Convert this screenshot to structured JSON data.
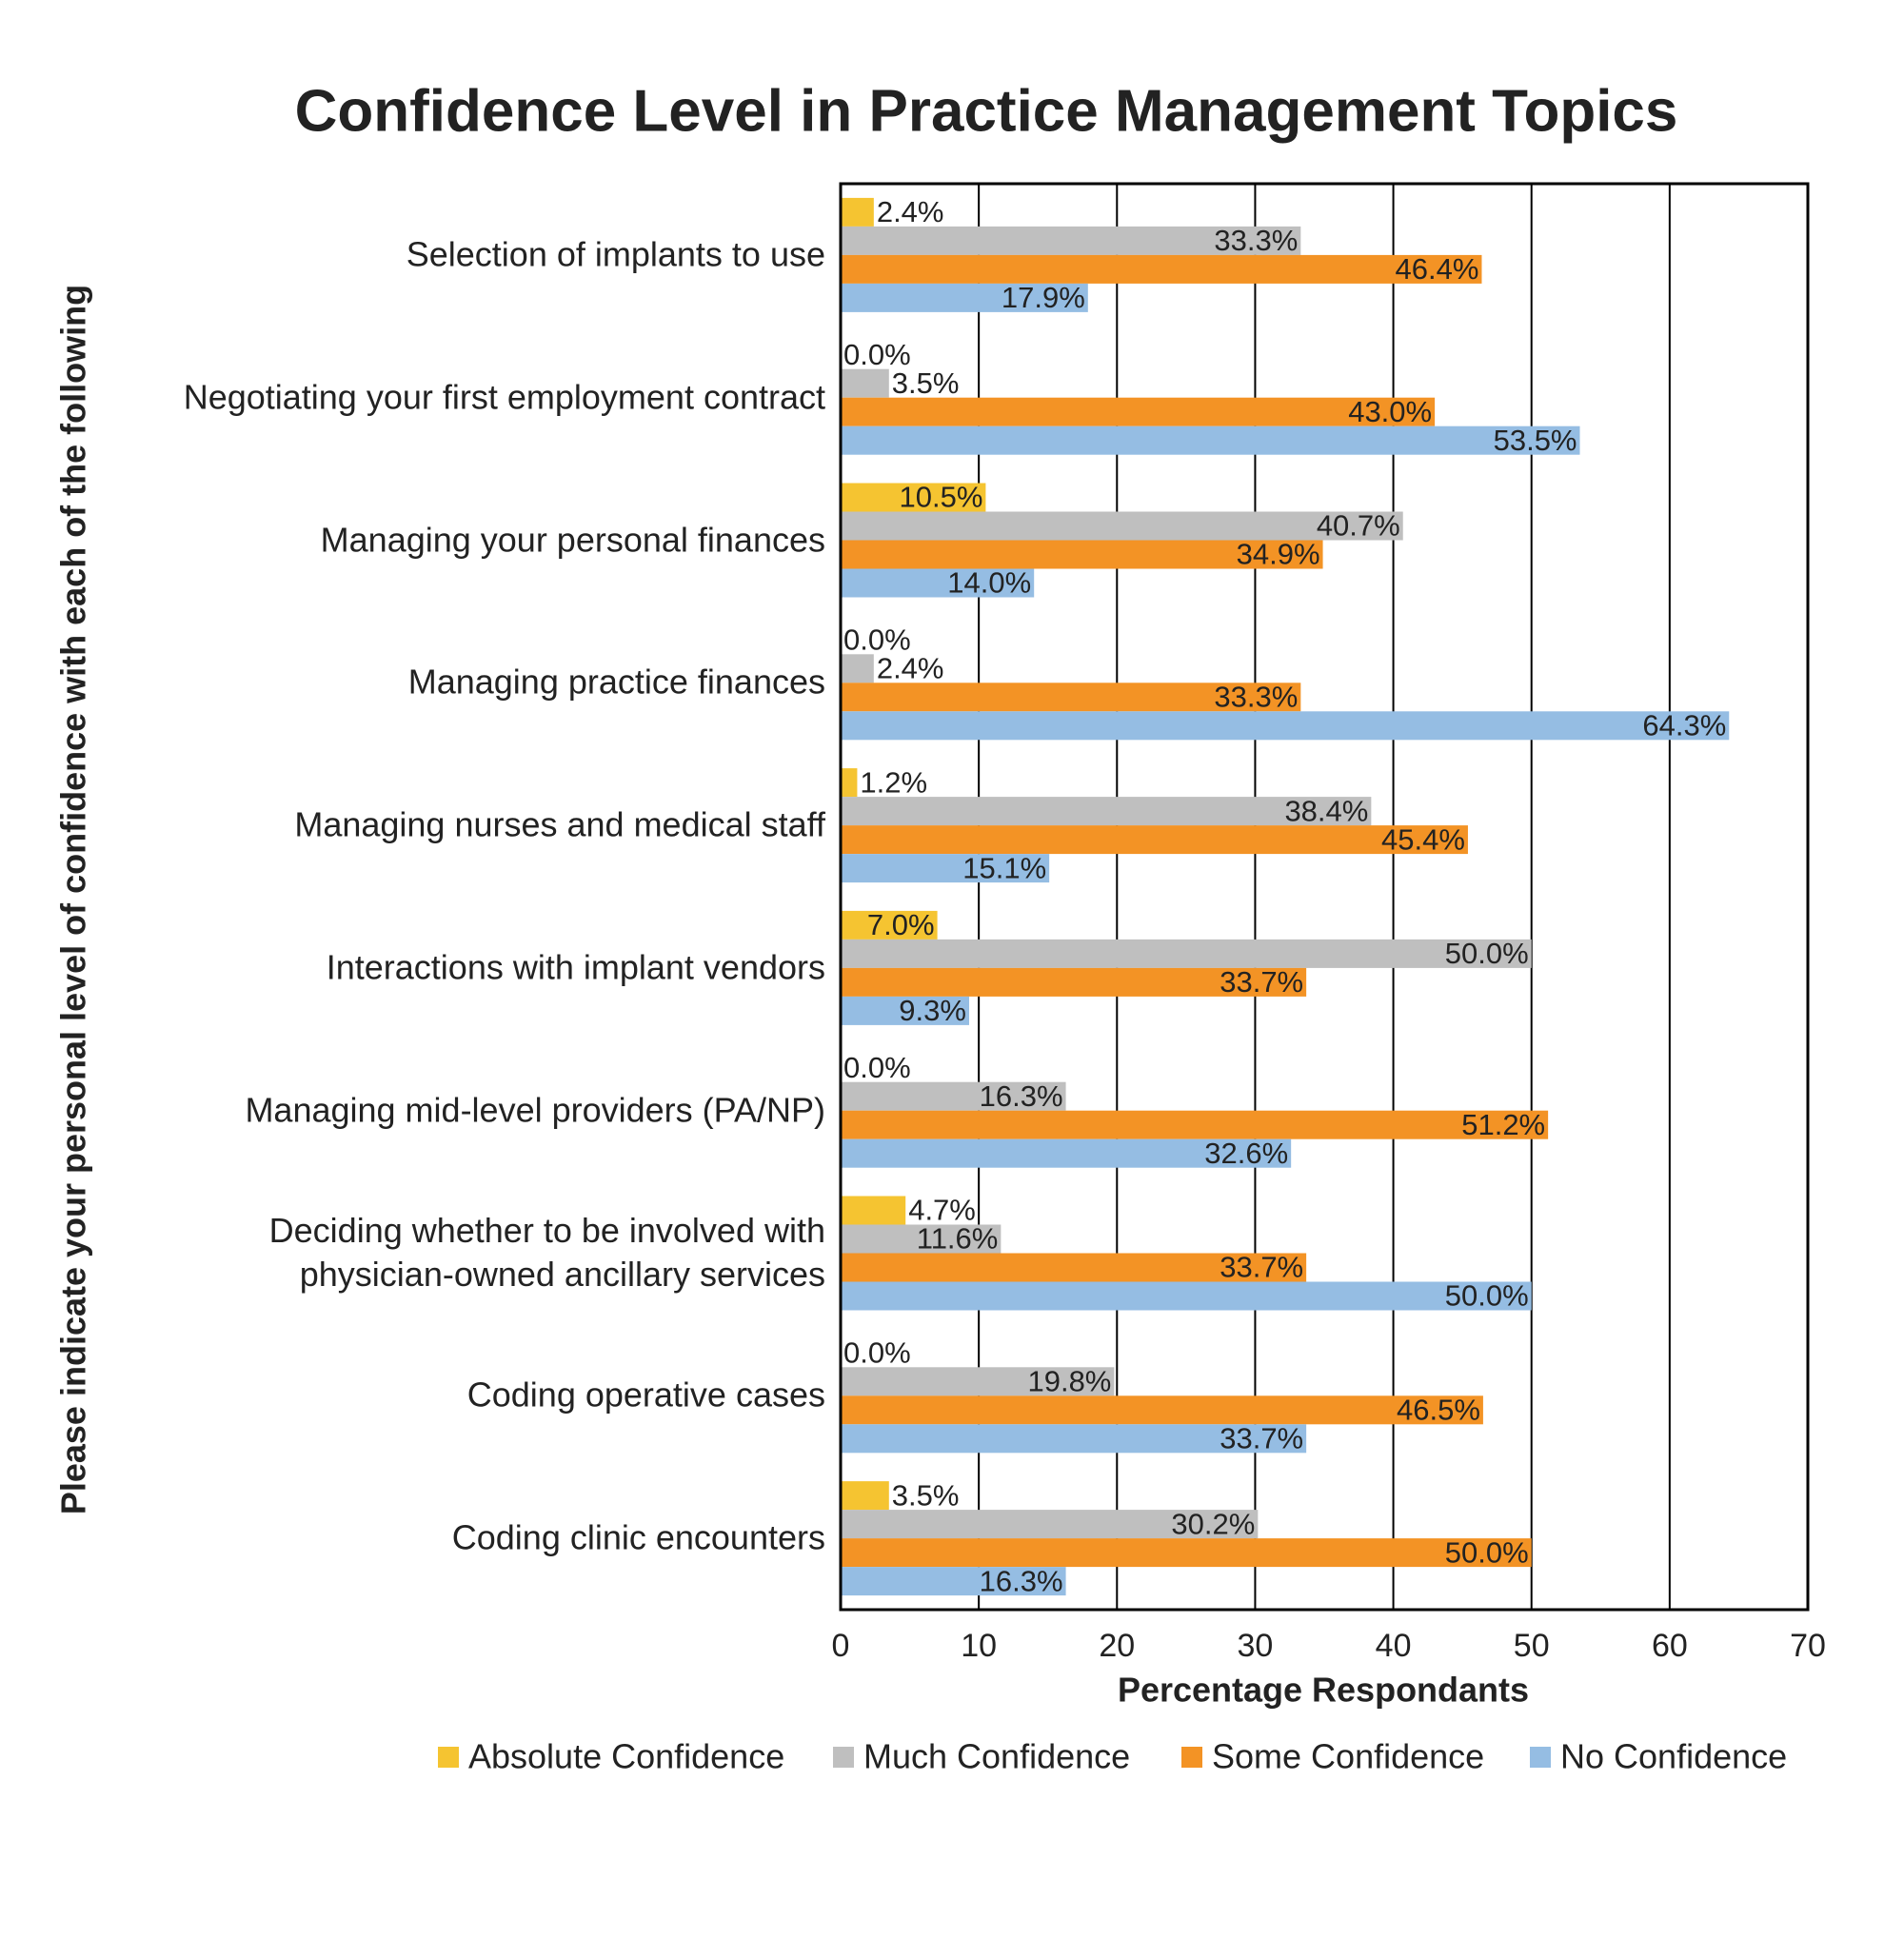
{
  "chart_data": {
    "type": "hbar",
    "title": "Confidence Level in Practice Management Topics",
    "xlabel": "Percentage Respondants",
    "ylabel": "Please indicate your personal level of confidence with each of the following",
    "categories": [
      "Selection of implants to use",
      "Negotiating your first employment contract",
      "Managing your personal finances",
      "Managing practice finances",
      "Managing nurses and medical staff",
      "Interactions with implant vendors",
      "Managing mid-level providers (PA/NP)",
      "Deciding whether to be involved with\nphysician-owned ancillary services",
      "Coding operative cases",
      "Coding clinic encounters"
    ],
    "series": [
      {
        "name": "Absolute Confidence",
        "color": "#f5c431",
        "values": [
          2.4,
          0.0,
          10.5,
          0.0,
          1.2,
          7.0,
          0.0,
          4.7,
          0.0,
          3.5
        ],
        "value_labels": [
          "2.4%",
          "0.0%",
          "10.5%",
          "0.0%",
          "1.2%",
          "7.0%",
          "0.0%",
          "4.7%",
          "0.0%",
          "3.5%"
        ]
      },
      {
        "name": "Much Confidence",
        "color": "#bfbfbf",
        "values": [
          33.3,
          3.5,
          40.7,
          2.4,
          38.4,
          50.0,
          16.3,
          11.6,
          19.8,
          30.2
        ],
        "value_labels": [
          "33.3%",
          "3.5%",
          "40.7%",
          "2.4%",
          "38.4%",
          "50.0%",
          "16.3%",
          "11.6%",
          "19.8%",
          "30.2%"
        ]
      },
      {
        "name": "Some Confidence",
        "color": "#f39325",
        "values": [
          46.4,
          43.0,
          34.9,
          33.3,
          45.4,
          33.7,
          51.2,
          33.7,
          46.5,
          50.0
        ],
        "value_labels": [
          "46.4%",
          "43.0%",
          "34.9%",
          "33.3%",
          "45.4%",
          "33.7%",
          "51.2%",
          "33.7%",
          "46.5%",
          "50.0%"
        ]
      },
      {
        "name": "No Confidence",
        "color": "#95bde3",
        "values": [
          17.9,
          53.5,
          14.0,
          64.3,
          15.1,
          9.3,
          32.6,
          50.0,
          33.7,
          16.3
        ],
        "value_labels": [
          "17.9%",
          "53.5%",
          "14.0%",
          "64.3%",
          "15.1%",
          "9.3%",
          "32.6%",
          "50.0%",
          "33.7%",
          "16.3%"
        ]
      }
    ],
    "xlim": [
      0,
      70
    ],
    "xticks": [
      0,
      10,
      20,
      30,
      40,
      50,
      60,
      70
    ],
    "grid": true,
    "legend": "bottom"
  }
}
